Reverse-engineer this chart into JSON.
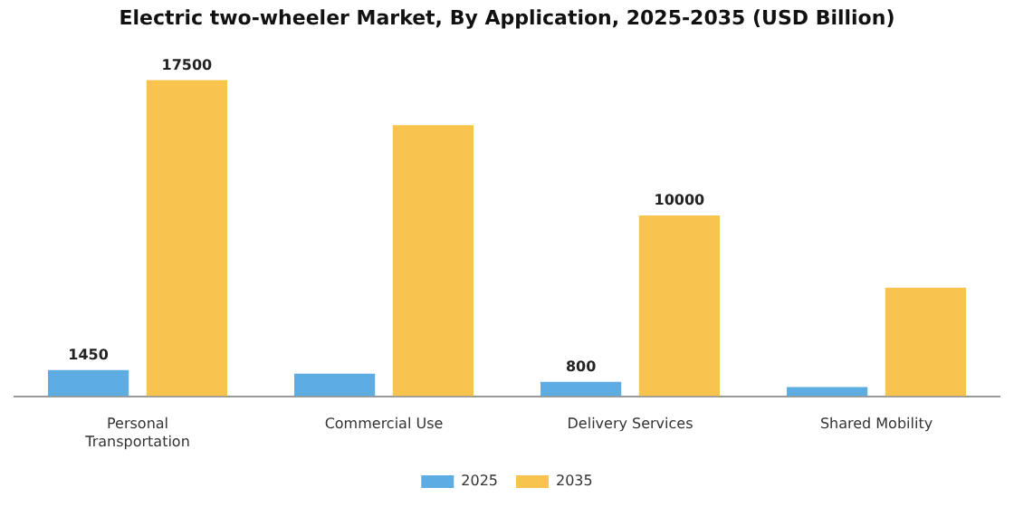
{
  "chart_data": {
    "type": "bar",
    "title": "Electric two-wheeler Market, By Application, 2025-2035 (USD Billion)",
    "categories": [
      "Personal Transportation",
      "Commercial Use",
      "Delivery Services",
      "Shared Mobility"
    ],
    "series": [
      {
        "name": "2025",
        "color": "#5dade2",
        "values": [
          1450,
          1250,
          800,
          500
        ],
        "value_labels": [
          "1450",
          null,
          "800",
          null
        ]
      },
      {
        "name": "2035",
        "color": "#f9c44e",
        "values": [
          17500,
          15000,
          10000,
          6000
        ],
        "value_labels": [
          "17500",
          null,
          "10000",
          null
        ]
      }
    ],
    "grid": false,
    "legend": "bottom",
    "tick_labels": "x"
  }
}
